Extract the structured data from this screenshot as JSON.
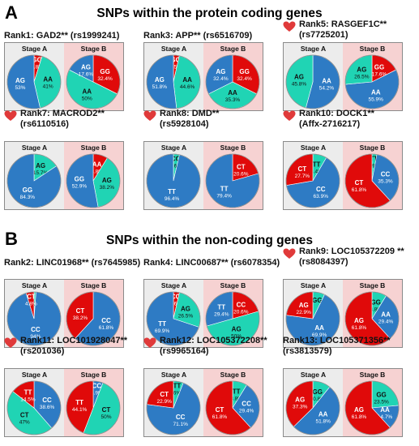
{
  "sections": [
    {
      "letter": "A",
      "title": "SNPs within the protein coding genes"
    },
    {
      "letter": "B",
      "title": "SNPs within the non-coding genes"
    }
  ],
  "stage_labels": {
    "a": "Stage A",
    "b": "Stage B"
  },
  "colors": {
    "blue": "#2e7bc4",
    "teal": "#20d4b4",
    "red": "#e00a0a",
    "stage_a_bg": "#ececec",
    "stage_b_bg": "#f6d2d2",
    "heart": "#e03a3a"
  },
  "cards": [
    {
      "title": [
        "Rank1: GAD2** (rs1999241)"
      ],
      "heart": false,
      "stage_a": [
        {
          "label": "GG",
          "value": 4.8,
          "color": "red"
        },
        {
          "label": "AA",
          "value": 41,
          "color": "teal"
        },
        {
          "label": "AG",
          "value": 53,
          "color": "blue"
        }
      ],
      "stage_b": [
        {
          "label": "GG",
          "value": 32.4,
          "color": "red"
        },
        {
          "label": "AA",
          "value": 50,
          "color": "teal"
        },
        {
          "label": "AG",
          "value": 17.6,
          "color": "blue"
        }
      ],
      "texts": {
        "a": [
          "GG\n4.8%",
          "AA\n41%",
          "AG\n53%"
        ],
        "b": [
          "GG\n32.4%",
          "AA\n50%",
          "AG\n17.6%"
        ]
      }
    },
    {
      "title": [
        "Rank3: APP** (rs6516709)"
      ],
      "heart": false,
      "stage_a": [
        {
          "label": "GG",
          "value": 3.5,
          "color": "red"
        },
        {
          "label": "AA",
          "value": 44.6,
          "color": "teal"
        },
        {
          "label": "AG",
          "value": 51.8,
          "color": "blue"
        }
      ],
      "stage_b": [
        {
          "label": "GG",
          "value": 32.4,
          "color": "red"
        },
        {
          "label": "AA",
          "value": 35.3,
          "color": "teal"
        },
        {
          "label": "AG",
          "value": 32.4,
          "color": "blue"
        }
      ],
      "texts": {
        "a": [
          "GG\n3.5%",
          "AA\n44.6%",
          "AG\n51.8%"
        ],
        "b": [
          "GG\n32.4%",
          "AA\n35.3%",
          "AG\n32.4%"
        ]
      }
    },
    {
      "title": [
        "Rank5: RASGEF1C**",
        "(rs7725201)"
      ],
      "heart": true,
      "stage_a": [
        {
          "label": "AA",
          "value": 54.2,
          "color": "blue"
        },
        {
          "label": "AG",
          "value": 45.8,
          "color": "teal"
        }
      ],
      "stage_b": [
        {
          "label": "GG",
          "value": 17.6,
          "color": "red"
        },
        {
          "label": "AA",
          "value": 55.9,
          "color": "blue"
        },
        {
          "label": "AG",
          "value": 26.5,
          "color": "teal"
        }
      ],
      "texts": {
        "a": [
          "AA\n54.2%",
          "AG\n45.8%"
        ],
        "b": [
          "GG\n17.6%",
          "AA\n55.9%",
          "AG\n26.5%"
        ]
      }
    },
    {
      "title": [
        "Rank7: MACROD2**",
        "(rs6110516)"
      ],
      "heart": true,
      "stage_a": [
        {
          "label": "AG",
          "value": 15.7,
          "color": "teal"
        },
        {
          "label": "GG",
          "value": 84.3,
          "color": "blue"
        }
      ],
      "stage_b": [
        {
          "label": "AA",
          "value": 8.8,
          "color": "red"
        },
        {
          "label": "AG",
          "value": 38.2,
          "color": "teal"
        },
        {
          "label": "GG",
          "value": 52.9,
          "color": "blue"
        }
      ],
      "texts": {
        "a": [
          "AG\n15.7%",
          "GG\n84.3%"
        ],
        "b": [
          "AA\n8.8%",
          "AG\n38.2%",
          "GG\n52.9%"
        ]
      }
    },
    {
      "title": [
        "Rank8: DMD**",
        "(rs5928104)"
      ],
      "heart": true,
      "stage_a": [
        {
          "label": "CC",
          "value": 3.6,
          "color": "teal"
        },
        {
          "label": "TT",
          "value": 96.4,
          "color": "blue"
        }
      ],
      "stage_b": [
        {
          "label": "CT",
          "value": 20.6,
          "color": "red"
        },
        {
          "label": "TT",
          "value": 79.4,
          "color": "blue"
        }
      ],
      "texts": {
        "a": [
          "CC\n3.6%",
          "TT\n96.4%"
        ],
        "b": [
          "CT\n20.6%",
          "TT\n79.4%"
        ]
      }
    },
    {
      "title": [
        "Rank10: DOCK1**",
        "(Affx-2716217)"
      ],
      "heart": true,
      "stage_a": [
        {
          "label": "TT",
          "value": 8.4,
          "color": "teal"
        },
        {
          "label": "CC",
          "value": 63.9,
          "color": "blue"
        },
        {
          "label": "CT",
          "value": 27.7,
          "color": "red"
        }
      ],
      "stage_b": [
        {
          "label": "TT",
          "value": 2.9,
          "color": "teal"
        },
        {
          "label": "CC",
          "value": 35.3,
          "color": "blue"
        },
        {
          "label": "CT",
          "value": 61.8,
          "color": "red"
        }
      ],
      "texts": {
        "a": [
          "TT\n8.4%",
          "CC\n63.9%",
          "CT\n27.7%"
        ],
        "b": [
          "TT\n2.9%",
          "CC\n35.3%",
          "CT\n61.8%"
        ]
      }
    },
    {
      "title": [
        "Rank2: LINC01968** (rs7645985)"
      ],
      "heart": false,
      "stage_a": [
        {
          "label": "TT",
          "value": 1.2,
          "color": "teal"
        },
        {
          "label": "CC",
          "value": 94,
          "color": "blue"
        },
        {
          "label": "CT",
          "value": 4.8,
          "color": "red"
        }
      ],
      "stage_b": [
        {
          "label": "CC",
          "value": 61.8,
          "color": "blue"
        },
        {
          "label": "CT",
          "value": 38.2,
          "color": "red"
        }
      ],
      "texts": {
        "a": [
          "TT\n1.2%",
          "CC\n94%",
          "CT\n4.8%"
        ],
        "b": [
          "CC\n61.8%",
          "CT\n38.2%"
        ]
      }
    },
    {
      "title": [
        "Rank4: LINC00687** (rs6078354)"
      ],
      "heart": false,
      "stage_a": [
        {
          "label": "CC",
          "value": 3.6,
          "color": "red"
        },
        {
          "label": "AG",
          "value": 26.5,
          "color": "teal"
        },
        {
          "label": "TT",
          "value": 69.9,
          "color": "blue"
        }
      ],
      "stage_b": [
        {
          "label": "CC",
          "value": 20.6,
          "color": "red"
        },
        {
          "label": "AG",
          "value": 50,
          "color": "teal"
        },
        {
          "label": "TT",
          "value": 29.4,
          "color": "blue"
        }
      ],
      "texts": {
        "a": [
          "CC\n3.6%",
          "AG\n26.5%",
          "TT\n69.9%"
        ],
        "b": [
          "CC\n20.6%",
          "AG\n50%",
          "TT\n29.4%"
        ]
      }
    },
    {
      "title": [
        "Rank9: LOC105372209 **",
        "(rs8084397)"
      ],
      "heart": true,
      "stage_a": [
        {
          "label": "GG",
          "value": 7.2,
          "color": "teal"
        },
        {
          "label": "AA",
          "value": 69.9,
          "color": "blue"
        },
        {
          "label": "AG",
          "value": 22.9,
          "color": "red"
        }
      ],
      "stage_b": [
        {
          "label": "GG",
          "value": 8.8,
          "color": "teal"
        },
        {
          "label": "AA",
          "value": 29.4,
          "color": "blue"
        },
        {
          "label": "AG",
          "value": 61.8,
          "color": "red"
        }
      ],
      "texts": {
        "a": [
          "GG",
          "AA\n69.9%",
          "AG\n22.9%"
        ],
        "b": [
          "GG\n8.8%",
          "AA\n29.4%",
          "AG\n61.8%"
        ]
      }
    },
    {
      "title": [
        "Rank11: LOC101928047**",
        "(rs201036)"
      ],
      "heart": true,
      "stage_a": [
        {
          "label": "CC",
          "value": 38.6,
          "color": "blue"
        },
        {
          "label": "CT",
          "value": 47,
          "color": "teal"
        },
        {
          "label": "TT",
          "value": 14.5,
          "color": "red"
        }
      ],
      "stage_b": [
        {
          "label": "CC",
          "value": 5.9,
          "color": "blue"
        },
        {
          "label": "CT",
          "value": 50,
          "color": "teal"
        },
        {
          "label": "TT",
          "value": 44.1,
          "color": "red"
        }
      ],
      "texts": {
        "a": [
          "CC\n38.6%",
          "CT\n47%",
          "TT\n14.5%"
        ],
        "b": [
          "CC\n5.9%",
          "CT\n50%",
          "TT\n44.1%"
        ]
      }
    },
    {
      "title": [
        "Rank12: LOC105372208**",
        "(rs9965164)"
      ],
      "heart": true,
      "stage_a": [
        {
          "label": "TT",
          "value": 6,
          "color": "teal"
        },
        {
          "label": "CC",
          "value": 71.1,
          "color": "blue"
        },
        {
          "label": "CT",
          "value": 22.9,
          "color": "red"
        }
      ],
      "stage_b": [
        {
          "label": "TT",
          "value": 8.8,
          "color": "teal"
        },
        {
          "label": "CC",
          "value": 29.4,
          "color": "blue"
        },
        {
          "label": "CT",
          "value": 61.8,
          "color": "red"
        }
      ],
      "texts": {
        "a": [
          "TT\n6%",
          "CC\n71.1%",
          "CT\n22.9%"
        ],
        "b": [
          "TT\n8.8%",
          "CC\n29.4%",
          "CT\n61.8%"
        ]
      }
    },
    {
      "title": [
        "Rank13: LOC105371356**",
        "(rs3813579)"
      ],
      "heart": false,
      "stage_a": [
        {
          "label": "GG",
          "value": 10.8,
          "color": "teal"
        },
        {
          "label": "AA",
          "value": 51.8,
          "color": "blue"
        },
        {
          "label": "AG",
          "value": 37.3,
          "color": "red"
        }
      ],
      "stage_b": [
        {
          "label": "GG",
          "value": 23.5,
          "color": "teal"
        },
        {
          "label": "AA",
          "value": 14.7,
          "color": "blue"
        },
        {
          "label": "AG",
          "value": 61.8,
          "color": "red"
        }
      ],
      "texts": {
        "a": [
          "GG\n10.8%",
          "AA\n51.8%",
          "AG\n37.3%"
        ],
        "b": [
          "GG\n23.5%",
          "AA\n14.7%",
          "AG\n61.8%"
        ]
      }
    }
  ]
}
